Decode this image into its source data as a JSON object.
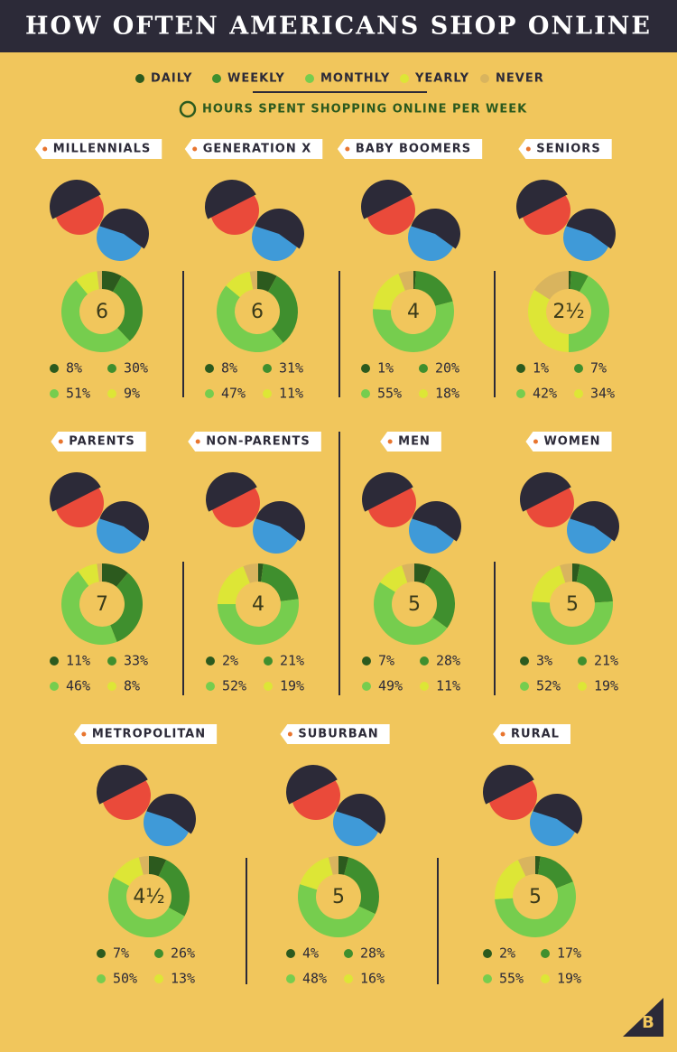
{
  "title": "HOW OFTEN AMERICANS SHOP ONLINE",
  "legend": {
    "names": [
      "DAILY",
      "WEEKLY",
      "MONTHLY",
      "YEARLY",
      "NEVER"
    ],
    "colors": [
      "#2c5a1e",
      "#3f8f2e",
      "#76cd4e",
      "#dde636",
      "#d9b45e"
    ],
    "hours_label": "HOURS SPENT SHOPPING ONLINE PER WEEK"
  },
  "logo": "B",
  "chart_data": [
    {
      "type": "donut",
      "title": "MILLENNIALS",
      "hours": 6,
      "values": [
        8,
        30,
        51,
        9,
        2
      ],
      "value_labels": [
        "8%",
        "30%",
        "51%",
        "9%",
        null
      ]
    },
    {
      "type": "donut",
      "title": "GENERATION X",
      "hours": 6,
      "values": [
        8,
        31,
        47,
        11,
        3
      ],
      "value_labels": [
        "8%",
        "31%",
        "47%",
        "11%",
        null
      ]
    },
    {
      "type": "donut",
      "title": "BABY BOOMERS",
      "hours": 4,
      "values": [
        1,
        20,
        55,
        18,
        6
      ],
      "value_labels": [
        "1%",
        "20%",
        "55%",
        "18%",
        null
      ]
    },
    {
      "type": "donut",
      "title": "SENIORS",
      "hours": {
        "value": 2.5,
        "label": "2½"
      },
      "values": [
        1,
        7,
        42,
        34,
        16
      ],
      "value_labels": [
        "1%",
        "7%",
        "42%",
        "34%",
        null
      ]
    },
    {
      "type": "donut",
      "title": "PARENTS",
      "hours": 7,
      "values": [
        11,
        33,
        46,
        8,
        2
      ],
      "value_labels": [
        "11%",
        "33%",
        "46%",
        "8%",
        null
      ]
    },
    {
      "type": "donut",
      "title": "NON-PARENTS",
      "hours": 4,
      "values": [
        2,
        21,
        52,
        19,
        6
      ],
      "value_labels": [
        "2%",
        "21%",
        "52%",
        "19%",
        null
      ]
    },
    {
      "type": "donut",
      "title": "MEN",
      "hours": 5,
      "values": [
        7,
        28,
        49,
        11,
        5
      ],
      "value_labels": [
        "7%",
        "28%",
        "49%",
        "11%",
        null
      ]
    },
    {
      "type": "donut",
      "title": "WOMEN",
      "hours": 5,
      "values": [
        3,
        21,
        52,
        19,
        5
      ],
      "value_labels": [
        "3%",
        "21%",
        "52%",
        "19%",
        null
      ]
    },
    {
      "type": "donut",
      "title": "METROPOLITAN",
      "hours": {
        "value": 4.5,
        "label": "4½"
      },
      "values": [
        7,
        26,
        50,
        13,
        4
      ],
      "value_labels": [
        "7%",
        "26%",
        "50%",
        "13%",
        null
      ]
    },
    {
      "type": "donut",
      "title": "SUBURBAN",
      "hours": 5,
      "values": [
        4,
        28,
        48,
        16,
        4
      ],
      "value_labels": [
        "4%",
        "28%",
        "48%",
        "16%",
        null
      ]
    },
    {
      "type": "donut",
      "title": "RURAL",
      "hours": 5,
      "values": [
        2,
        17,
        55,
        19,
        7
      ],
      "value_labels": [
        "2%",
        "17%",
        "55%",
        "19%",
        null
      ]
    }
  ]
}
